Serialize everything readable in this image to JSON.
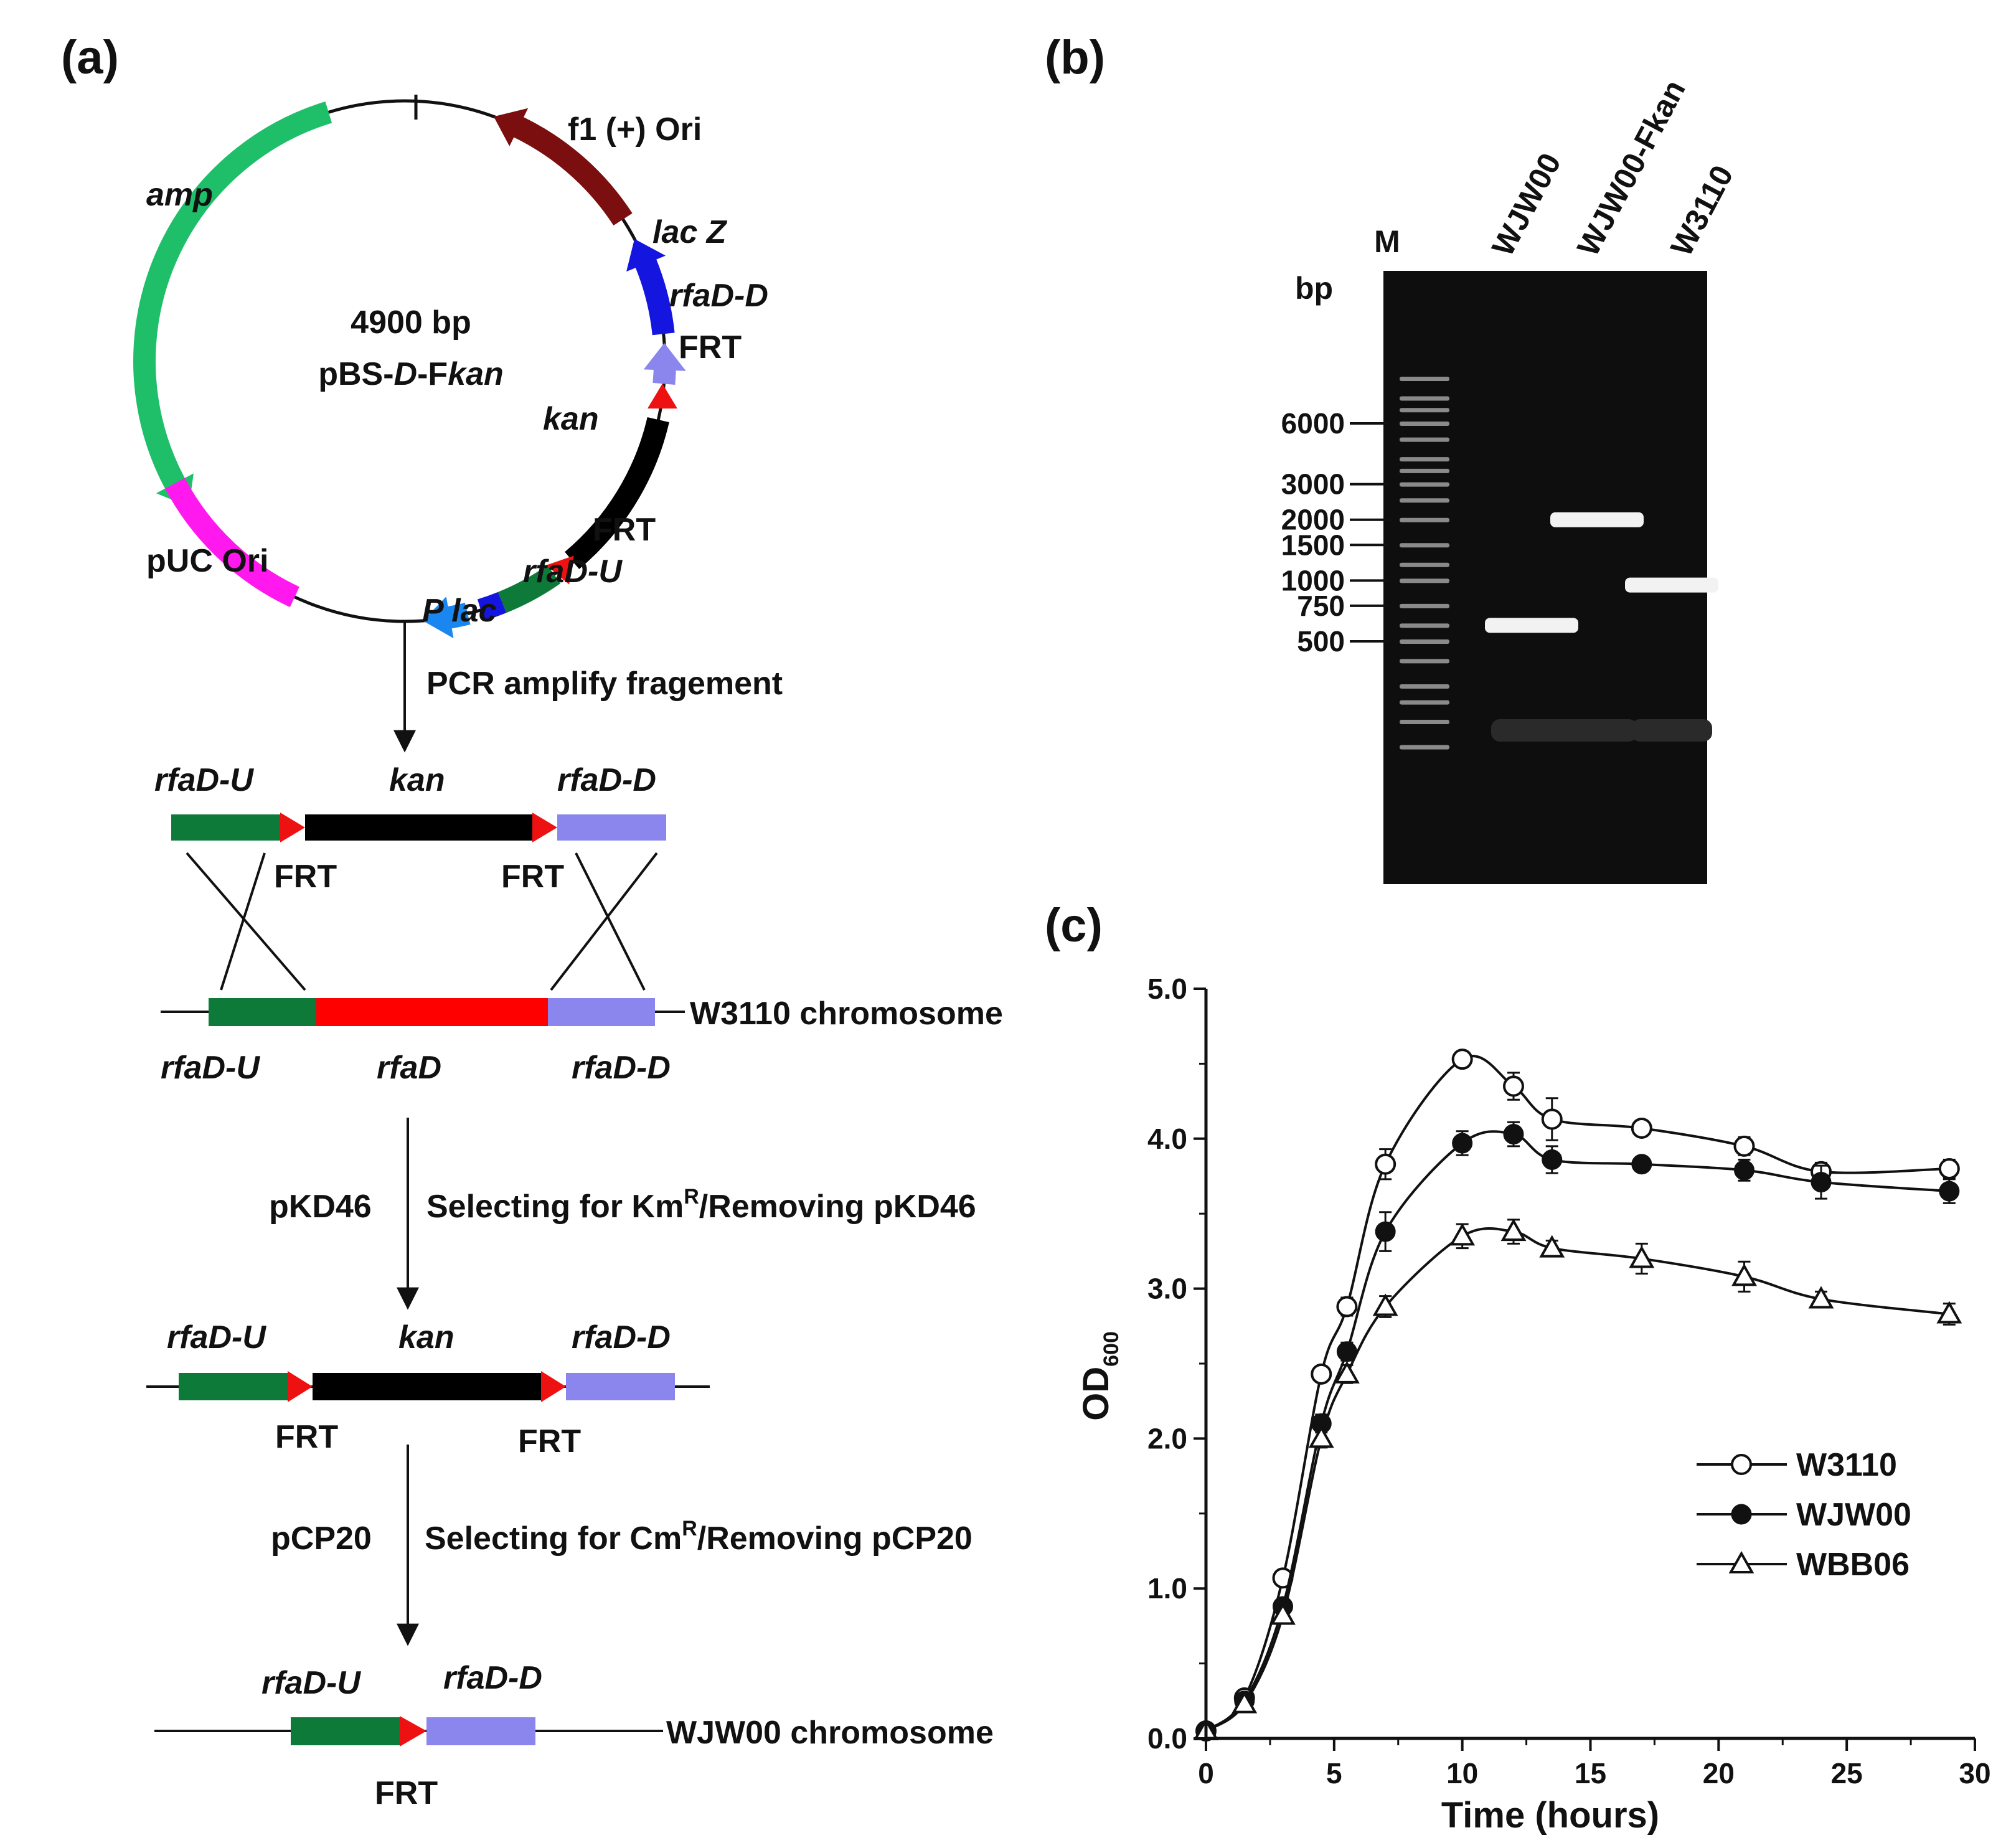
{
  "panels": {
    "a": "(a)",
    "b": "(b)",
    "c": "(c)"
  },
  "colors": {
    "amp": "#1fbf6a",
    "ori_f1": "#7b0e0e",
    "lacZ": "#1515e0",
    "rfaD_D": "#8a86ee",
    "frt": "#ee1111",
    "kan": "#000000",
    "rfaD_U": "#0e7a3a",
    "Plac": "#1a86f0",
    "pUC": "#ff19ee",
    "rfaD": "#ff0000"
  },
  "plasmid": {
    "size": "4900 bp",
    "name_prefix": "pBS-",
    "name_italic1": "D",
    "name_mid": "-F",
    "name_italic2": "kan",
    "features": {
      "amp": "amp",
      "f1": "f1 (+) Ori",
      "lacZ": "lac Z",
      "rfaD_D": "rfaD-D",
      "frt_top": "FRT",
      "kan": "kan",
      "frt_bottom": "FRT",
      "rfaD_U": "rfaD-U",
      "pUC": "pUC Ori",
      "Plac": "P lac"
    }
  },
  "steps": {
    "pcr": "PCR amplify fragement",
    "step2_left": "pKD46",
    "step2_prefix": "Selecting for Km",
    "step2_sup": "R",
    "step2_suffix": "/Removing pKD46",
    "step3_left": "pCP20",
    "step3_prefix": "Selecting for Cm",
    "step3_sup": "R",
    "step3_suffix": "/Removing pCP20"
  },
  "fragment": {
    "u": "rfaD-U",
    "kan": "kan",
    "d": "rfaD-D",
    "frt1": "FRT",
    "frt2": "FRT"
  },
  "chromosome": {
    "label": "W3110 chromosome",
    "u": "rfaD-U",
    "mid": "rfaD",
    "d": "rfaD-D"
  },
  "intermediate": {
    "u": "rfaD-U",
    "kan": "kan",
    "d": "rfaD-D",
    "frt1": "FRT",
    "frt2": "FRT"
  },
  "final": {
    "u": "rfaD-U",
    "d": "rfaD-D",
    "frt": "FRT",
    "label": "WJW00 chromosome"
  },
  "gel": {
    "unit": "bp",
    "lanes": [
      "M",
      "WJW00",
      "WJW00-Fkan",
      "W3110"
    ],
    "marker_labels": [
      "6000",
      "3000",
      "2000",
      "1500",
      "1000",
      "750",
      "500"
    ],
    "bands": [
      {
        "lane": "WJW00",
        "size_bp": 600
      },
      {
        "lane": "WJW00-Fkan",
        "size_bp": 2000
      },
      {
        "lane": "W3110",
        "size_bp": 950
      }
    ]
  },
  "chart_data": {
    "type": "line",
    "xlabel": "Time (hours)",
    "ylabel_main": "OD",
    "ylabel_sub": "600",
    "xlim": [
      0,
      30
    ],
    "ylim": [
      0,
      5
    ],
    "xticks": [
      0,
      5,
      10,
      15,
      20,
      25,
      30
    ],
    "yticks": [
      "0.0",
      "1.0",
      "2.0",
      "3.0",
      "4.0",
      "5.0"
    ],
    "legend_position": "lower-right",
    "series": [
      {
        "name": "W3110",
        "marker": "open-circle",
        "x": [
          0,
          1.5,
          3,
          4.5,
          5.5,
          7,
          10,
          12,
          13.5,
          17,
          21,
          24,
          29
        ],
        "y": [
          0.05,
          0.27,
          1.07,
          2.43,
          2.88,
          3.83,
          4.53,
          4.35,
          4.13,
          4.07,
          3.95,
          3.78,
          3.8
        ],
        "err": [
          0.02,
          0.03,
          0.05,
          0.05,
          0.06,
          0.1,
          0.05,
          0.09,
          0.14,
          0.05,
          0.06,
          0.06,
          0.06
        ]
      },
      {
        "name": "WJW00",
        "marker": "filled-circle",
        "x": [
          0,
          1.5,
          3,
          4.5,
          5.5,
          7,
          10,
          12,
          13.5,
          17,
          21,
          24,
          29
        ],
        "y": [
          0.05,
          0.25,
          0.88,
          2.1,
          2.58,
          3.38,
          3.97,
          4.03,
          3.86,
          3.83,
          3.79,
          3.71,
          3.65
        ],
        "err": [
          0.02,
          0.03,
          0.05,
          0.06,
          0.06,
          0.13,
          0.08,
          0.08,
          0.09,
          0.04,
          0.07,
          0.11,
          0.08
        ]
      },
      {
        "name": "WBB06",
        "marker": "open-triangle",
        "x": [
          0,
          1.5,
          3,
          4.5,
          5.5,
          7,
          10,
          12,
          13.5,
          17,
          21,
          24,
          29
        ],
        "y": [
          0.05,
          0.23,
          0.82,
          2.0,
          2.43,
          2.88,
          3.35,
          3.38,
          3.27,
          3.2,
          3.08,
          2.93,
          2.83
        ],
        "err": [
          0.02,
          0.03,
          0.05,
          0.06,
          0.06,
          0.07,
          0.08,
          0.08,
          0.05,
          0.1,
          0.1,
          0.05,
          0.07
        ]
      }
    ]
  }
}
